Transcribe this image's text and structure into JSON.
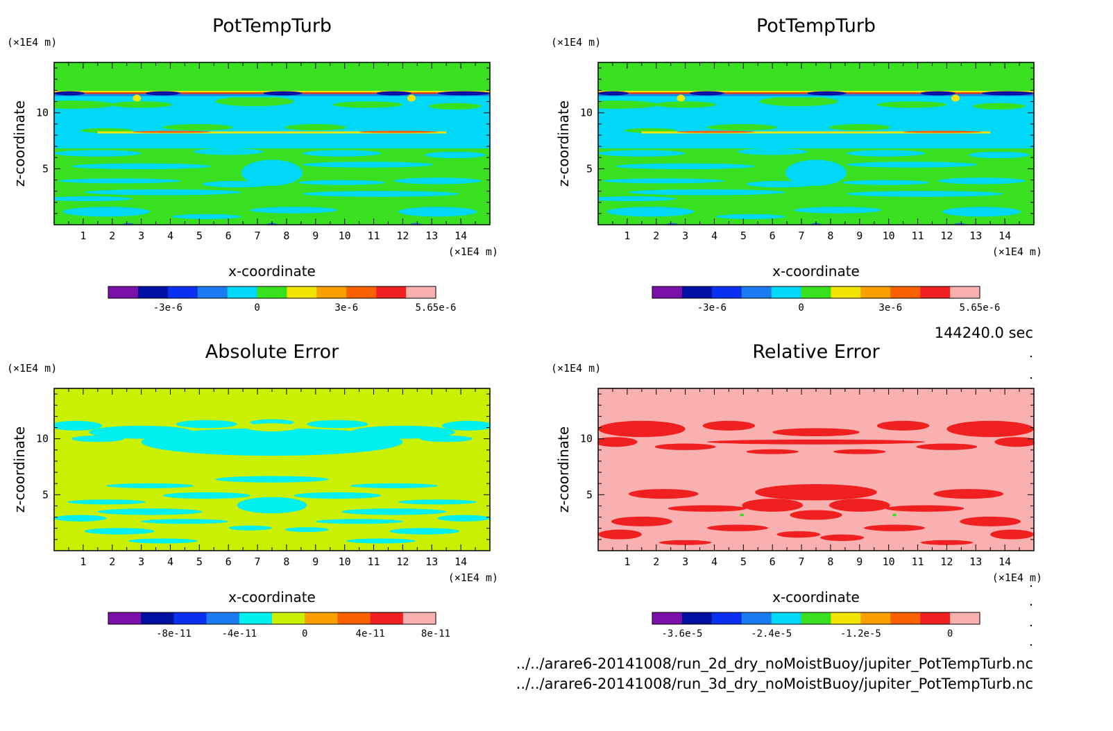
{
  "chart_data": [
    {
      "type": "heatmap",
      "title": "PotTempTurb",
      "xlabel": "x-coordinate",
      "ylabel": "z-coordinate",
      "x_unit": "(×1E4 m)",
      "y_unit": "(×1E4 m)",
      "xlim": [
        0,
        15
      ],
      "ylim": [
        0,
        14.5
      ],
      "x_ticks": [
        "1",
        "2",
        "3",
        "4",
        "5",
        "6",
        "7",
        "8",
        "9",
        "10",
        "11",
        "12",
        "13",
        "14"
      ],
      "y_ticks": [
        "5",
        "10"
      ],
      "background_level": 5,
      "colorbar": {
        "colors": [
          "#7b10a8",
          "#0010a0",
          "#0a30f0",
          "#1a7cf0",
          "#00d8f8",
          "#38e020",
          "#f0e400",
          "#f8a000",
          "#f86000",
          "#f02020",
          "#f8b0b0"
        ],
        "labels": [
          "-3e-6",
          "0",
          "3e-6",
          "5.65e-6"
        ],
        "label_positions": [
          1,
          4,
          7,
          10
        ]
      },
      "structure": "flat"
    },
    {
      "type": "heatmap",
      "title": "PotTempTurb",
      "xlabel": "x-coordinate",
      "ylabel": "z-coordinate",
      "x_unit": "(×1E4 m)",
      "y_unit": "(×1E4 m)",
      "xlim": [
        0,
        15
      ],
      "ylim": [
        0,
        14.5
      ],
      "x_ticks": [
        "1",
        "2",
        "3",
        "4",
        "5",
        "6",
        "7",
        "8",
        "9",
        "10",
        "11",
        "12",
        "13",
        "14"
      ],
      "y_ticks": [
        "5",
        "10"
      ],
      "background_level": 5,
      "colorbar": {
        "colors": [
          "#7b10a8",
          "#0010a0",
          "#0a30f0",
          "#1a7cf0",
          "#00d8f8",
          "#38e020",
          "#f0e400",
          "#f8a000",
          "#f86000",
          "#f02020",
          "#f8b0b0"
        ],
        "labels": [
          "-3e-6",
          "0",
          "3e-6",
          "5.65e-6"
        ],
        "label_positions": [
          1,
          4,
          7,
          10
        ]
      },
      "structure": "flat"
    },
    {
      "type": "heatmap",
      "title": "Absolute Error",
      "xlabel": "x-coordinate",
      "ylabel": "z-coordinate",
      "x_unit": "(×1E4 m)",
      "y_unit": "(×1E4 m)",
      "xlim": [
        0,
        15
      ],
      "ylim": [
        0,
        14.5
      ],
      "x_ticks": [
        "1",
        "2",
        "3",
        "4",
        "5",
        "6",
        "7",
        "8",
        "9",
        "10",
        "11",
        "12",
        "13",
        "14"
      ],
      "y_ticks": [
        "5",
        "10"
      ],
      "background_level": 5,
      "colorbar": {
        "colors": [
          "#7b10a8",
          "#0010a0",
          "#0a30f0",
          "#1a7cf0",
          "#00f0f0",
          "#c8f000",
          "#f8a000",
          "#f86000",
          "#f02020",
          "#f8b0b0"
        ],
        "labels": [
          "-8e-11",
          "-4e-11",
          "0",
          "4e-11",
          "8e-11"
        ],
        "label_positions": [
          1,
          3,
          5,
          7,
          9
        ]
      },
      "structure": "patchy"
    },
    {
      "type": "heatmap",
      "title": "Relative Error",
      "xlabel": "x-coordinate",
      "ylabel": "z-coordinate",
      "x_unit": "(×1E4 m)",
      "y_unit": "(×1E4 m)",
      "xlim": [
        0,
        15
      ],
      "ylim": [
        0,
        14.5
      ],
      "x_ticks": [
        "1",
        "2",
        "3",
        "4",
        "5",
        "6",
        "7",
        "8",
        "9",
        "10",
        "11",
        "12",
        "13",
        "14"
      ],
      "y_ticks": [
        "5",
        "10"
      ],
      "background_level": 10,
      "colorbar": {
        "colors": [
          "#7b10a8",
          "#0010a0",
          "#0a30f0",
          "#1a7cf0",
          "#00d8f8",
          "#38e020",
          "#f0e400",
          "#f8a000",
          "#f86000",
          "#f02020",
          "#f8b0b0"
        ],
        "labels": [
          "-3.6e-5",
          "-2.4e-5",
          "-1.2e-5",
          "0"
        ],
        "label_positions": [
          0,
          3,
          6,
          9
        ]
      },
      "structure": "speckle"
    }
  ],
  "time_label": "144240.0 sec",
  "files": [
    "../../arare6-20141008/run_2d_dry_noMoistBuoy/jupiter_PotTempTurb.nc",
    "../../arare6-20141008/run_3d_dry_noMoistBuoy/jupiter_PotTempTurb.nc"
  ]
}
